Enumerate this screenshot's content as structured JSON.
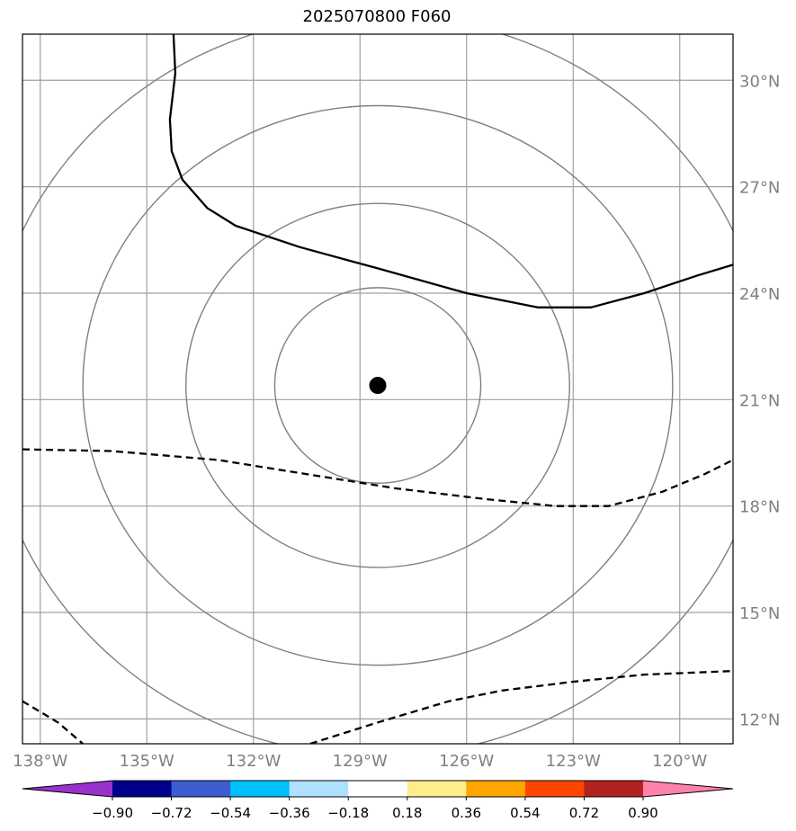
{
  "title": "2025070800 F060",
  "map": {
    "lon_range": [
      -138.5,
      -118.5
    ],
    "lat_range": [
      11.3,
      31.3
    ],
    "lon_ticks": [
      {
        "value": -138,
        "label": "138°W"
      },
      {
        "value": -135,
        "label": "135°W"
      },
      {
        "value": -132,
        "label": "132°W"
      },
      {
        "value": -129,
        "label": "129°W"
      },
      {
        "value": -126,
        "label": "126°W"
      },
      {
        "value": -123,
        "label": "123°W"
      },
      {
        "value": -120,
        "label": "120°W"
      }
    ],
    "lat_ticks": [
      {
        "value": 30,
        "label": "30°N"
      },
      {
        "value": 27,
        "label": "27°N"
      },
      {
        "value": 24,
        "label": "24°N"
      },
      {
        "value": 21,
        "label": "21°N"
      },
      {
        "value": 18,
        "label": "18°N"
      },
      {
        "value": 15,
        "label": "15°N"
      },
      {
        "value": 12,
        "label": "12°N"
      }
    ],
    "gridline_color": "#a0a0a0",
    "storm_center": {
      "lon": -128.5,
      "lat": 21.4
    },
    "range_ring_radii_deg": [
      2.9,
      5.4,
      8.3,
      11.0
    ],
    "range_ring_color": "#808080",
    "contours": [
      {
        "style": "solid",
        "points": [
          [
            -134.25,
            31.3
          ],
          [
            -134.2,
            30.2
          ],
          [
            -134.35,
            28.9
          ],
          [
            -134.3,
            28.0
          ],
          [
            -134.0,
            27.2
          ],
          [
            -133.3,
            26.4
          ],
          [
            -132.5,
            25.9
          ],
          [
            -130.7,
            25.3
          ],
          [
            -128.5,
            24.7
          ],
          [
            -126.0,
            24.0
          ],
          [
            -124.0,
            23.6
          ],
          [
            -122.5,
            23.6
          ],
          [
            -121.0,
            24.0
          ],
          [
            -119.5,
            24.5
          ],
          [
            -118.5,
            24.8
          ]
        ]
      },
      {
        "style": "dashed",
        "points": [
          [
            -138.5,
            19.6
          ],
          [
            -136.0,
            19.55
          ],
          [
            -133.0,
            19.3
          ],
          [
            -130.5,
            18.9
          ],
          [
            -128.0,
            18.5
          ],
          [
            -125.5,
            18.2
          ],
          [
            -123.5,
            18.0
          ],
          [
            -122.0,
            18.0
          ],
          [
            -120.5,
            18.4
          ],
          [
            -119.3,
            18.9
          ],
          [
            -118.5,
            19.3
          ]
        ]
      },
      {
        "style": "dashed",
        "points": [
          [
            -138.5,
            12.5
          ],
          [
            -137.5,
            11.9
          ],
          [
            -136.8,
            11.3
          ]
        ]
      },
      {
        "style": "dashed",
        "points": [
          [
            -130.4,
            11.3
          ],
          [
            -128.5,
            11.9
          ],
          [
            -126.5,
            12.5
          ],
          [
            -125.0,
            12.8
          ],
          [
            -123.0,
            13.05
          ],
          [
            -121.0,
            13.25
          ],
          [
            -118.5,
            13.35
          ]
        ]
      }
    ]
  },
  "colorbar": {
    "colors": [
      "#9932cc",
      "#00008b",
      "#3c5ccf",
      "#00bfff",
      "#b0e0ff",
      "#ffffff",
      "#ffec8b",
      "#ffa500",
      "#ff4500",
      "#b22222",
      "#ff82ab"
    ],
    "tick_labels": [
      "−0.90",
      "−0.72",
      "−0.54",
      "−0.36",
      "−0.18",
      "0.18",
      "0.36",
      "0.54",
      "0.72",
      "0.90"
    ]
  }
}
